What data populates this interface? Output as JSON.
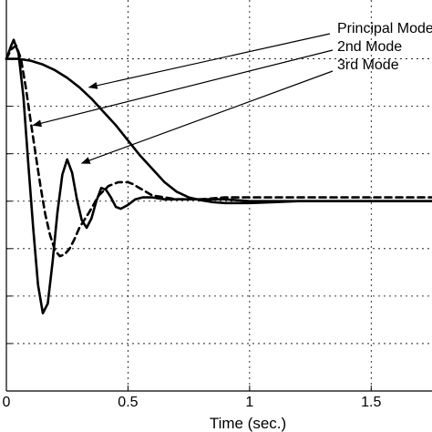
{
  "chart_data": {
    "type": "line",
    "title": "",
    "xlabel": "Time (sec.)",
    "ylabel": "",
    "xlim": [
      0,
      1.75
    ],
    "ylim": [
      -1.0,
      1.06
    ],
    "grid": true,
    "x_ticks": [
      0,
      0.5,
      1,
      1.5
    ],
    "x_tick_labels": [
      "0",
      "0.5",
      "1",
      "1.5"
    ],
    "y_ticks": [
      -1.0,
      -0.75,
      -0.5,
      -0.25,
      0,
      0.25,
      0.5,
      0.75
    ],
    "annotations": [
      {
        "text": "Principal Mode",
        "target": [
          0.34,
          0.6
        ]
      },
      {
        "text": "2nd Mode",
        "target": [
          0.11,
          0.4
        ]
      },
      {
        "text": "3rd Mode",
        "target": [
          0.31,
          0.2
        ]
      }
    ],
    "series": [
      {
        "name": "Principal Mode",
        "style": "solid",
        "x": [
          0,
          0.05,
          0.1,
          0.15,
          0.2,
          0.25,
          0.3,
          0.35,
          0.4,
          0.45,
          0.5,
          0.55,
          0.6,
          0.65,
          0.7,
          0.75,
          0.8,
          0.85,
          0.9,
          0.95,
          1.0,
          1.1,
          1.2,
          1.3,
          1.4,
          1.5,
          1.6,
          1.75
        ],
        "y": [
          0.75,
          0.75,
          0.74,
          0.72,
          0.69,
          0.65,
          0.6,
          0.54,
          0.47,
          0.4,
          0.32,
          0.24,
          0.17,
          0.1,
          0.05,
          0.02,
          0.005,
          -0.005,
          -0.01,
          -0.01,
          -0.01,
          -0.005,
          0.0,
          0.0,
          0.0,
          0.0,
          0.0,
          0.0
        ]
      },
      {
        "name": "2nd Mode",
        "style": "dashed",
        "x": [
          0,
          0.02,
          0.04,
          0.06,
          0.08,
          0.1,
          0.12,
          0.14,
          0.16,
          0.18,
          0.2,
          0.22,
          0.24,
          0.26,
          0.28,
          0.3,
          0.34,
          0.38,
          0.42,
          0.46,
          0.5,
          0.52,
          0.56,
          0.6,
          0.65,
          0.7,
          0.8,
          0.9,
          1.0,
          1.1,
          1.2,
          1.3,
          1.4,
          1.5,
          1.6,
          1.75
        ],
        "y": [
          0.75,
          0.8,
          0.82,
          0.75,
          0.6,
          0.42,
          0.25,
          0.08,
          -0.07,
          -0.18,
          -0.26,
          -0.29,
          -0.28,
          -0.25,
          -0.2,
          -0.14,
          -0.06,
          0.03,
          0.08,
          0.1,
          0.1,
          0.09,
          0.06,
          0.03,
          0.02,
          0.01,
          0.01,
          0.02,
          0.02,
          0.02,
          0.02,
          0.02,
          0.02,
          0.02,
          0.02,
          0.02
        ]
      },
      {
        "name": "3rd Mode",
        "style": "solid",
        "x": [
          0,
          0.02,
          0.03,
          0.05,
          0.07,
          0.09,
          0.11,
          0.13,
          0.15,
          0.17,
          0.19,
          0.21,
          0.23,
          0.25,
          0.27,
          0.29,
          0.31,
          0.33,
          0.35,
          0.37,
          0.39,
          0.41,
          0.43,
          0.45,
          0.47,
          0.5,
          0.53,
          0.56,
          0.6,
          0.65,
          0.7,
          0.8,
          0.9,
          1.0,
          1.1,
          1.2,
          1.3,
          1.4,
          1.5,
          1.6,
          1.75
        ],
        "y": [
          0.75,
          0.82,
          0.85,
          0.78,
          0.55,
          0.2,
          -0.14,
          -0.44,
          -0.59,
          -0.54,
          -0.32,
          -0.06,
          0.14,
          0.22,
          0.15,
          0.01,
          -0.1,
          -0.14,
          -0.09,
          0.0,
          0.07,
          0.06,
          0.02,
          -0.03,
          -0.04,
          -0.02,
          0.01,
          0.02,
          0.02,
          0.01,
          0.01,
          0.01,
          0.01,
          0.0,
          0.0,
          0.0,
          0.0,
          0.0,
          0.0,
          0.0,
          0.0
        ]
      }
    ]
  }
}
